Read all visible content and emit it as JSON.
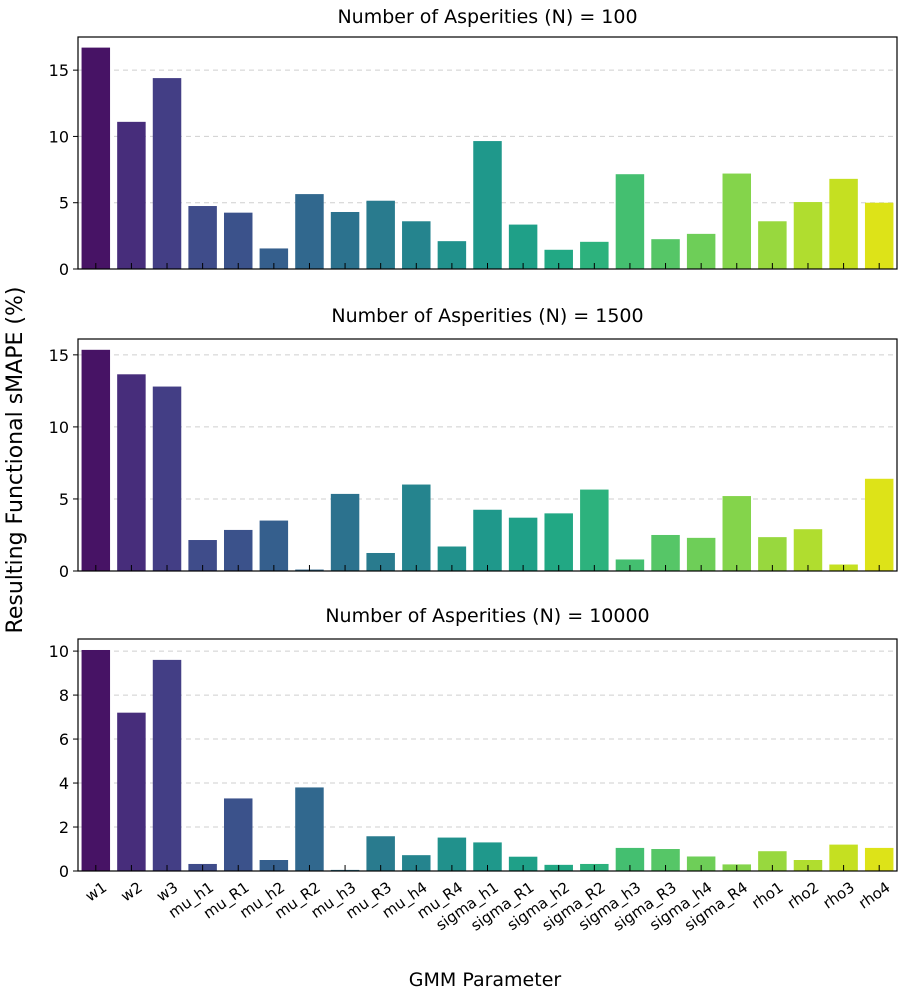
{
  "ylabel": "Resulting Functional sMAPE (%)",
  "xlabel": "GMM Parameter",
  "chart_data": [
    {
      "type": "bar",
      "title": "Number of Asperities (N) = 100",
      "categories": [
        "w1",
        "w2",
        "w3",
        "mu_h1",
        "mu_R1",
        "mu_h2",
        "mu_R2",
        "mu_h3",
        "mu_R3",
        "mu_h4",
        "mu_R4",
        "sigma_h1",
        "sigma_R1",
        "sigma_h2",
        "sigma_R2",
        "sigma_h3",
        "sigma_R3",
        "sigma_h4",
        "sigma_R4",
        "rho1",
        "rho2",
        "rho3",
        "rho4"
      ],
      "values": [
        16.7,
        11.1,
        14.4,
        4.75,
        4.25,
        1.55,
        5.65,
        4.3,
        5.15,
        3.6,
        2.1,
        9.65,
        3.35,
        1.45,
        2.05,
        7.15,
        2.25,
        2.65,
        7.2,
        3.6,
        5.05,
        6.8,
        5.0
      ],
      "ylim": [
        0,
        17.5
      ],
      "yticks": [
        0,
        5,
        10,
        15
      ],
      "grid": true
    },
    {
      "type": "bar",
      "title": "Number of Asperities (N) = 1500",
      "categories": [
        "w1",
        "w2",
        "w3",
        "mu_h1",
        "mu_R1",
        "mu_h2",
        "mu_R2",
        "mu_h3",
        "mu_R3",
        "mu_h4",
        "mu_R4",
        "sigma_h1",
        "sigma_R1",
        "sigma_h2",
        "sigma_R2",
        "sigma_h3",
        "sigma_R3",
        "sigma_h4",
        "sigma_R4",
        "rho1",
        "rho2",
        "rho3",
        "rho4"
      ],
      "values": [
        15.35,
        13.65,
        12.8,
        2.15,
        2.85,
        3.5,
        0.1,
        5.35,
        1.25,
        6.0,
        1.7,
        4.25,
        3.7,
        4.0,
        5.65,
        0.8,
        2.5,
        2.3,
        5.2,
        2.35,
        2.9,
        0.45,
        6.4
      ],
      "ylim": [
        0,
        16.1
      ],
      "yticks": [
        0,
        5,
        10,
        15
      ],
      "grid": true
    },
    {
      "type": "bar",
      "title": "Number of Asperities (N) = 10000",
      "categories": [
        "w1",
        "w2",
        "w3",
        "mu_h1",
        "mu_R1",
        "mu_h2",
        "mu_R2",
        "mu_h3",
        "mu_R3",
        "mu_h4",
        "mu_R4",
        "sigma_h1",
        "sigma_R1",
        "sigma_h2",
        "sigma_R2",
        "sigma_h3",
        "sigma_R3",
        "sigma_h4",
        "sigma_R4",
        "rho1",
        "rho2",
        "rho3",
        "rho4"
      ],
      "values": [
        10.05,
        7.2,
        9.6,
        0.32,
        3.3,
        0.5,
        3.8,
        0.05,
        1.58,
        0.72,
        1.52,
        1.3,
        0.65,
        0.28,
        0.32,
        1.05,
        1.0,
        0.66,
        0.3,
        0.9,
        0.5,
        1.2,
        1.05
      ],
      "ylim": [
        0,
        10.55
      ],
      "yticks": [
        0,
        2,
        4,
        6,
        8,
        10
      ],
      "grid": true
    }
  ],
  "colors": [
    "#471365",
    "#472d7b",
    "#433e85",
    "#3f4c8a",
    "#3b528b",
    "#355f8d",
    "#31688e",
    "#2c728e",
    "#297b8e",
    "#25848e",
    "#21918c",
    "#1f988b",
    "#1fa088",
    "#22a884",
    "#2db27d",
    "#44bf70",
    "#56c667",
    "#6ece58",
    "#84d44b",
    "#98d83e",
    "#b0dd2f",
    "#c5e021",
    "#dde318"
  ]
}
